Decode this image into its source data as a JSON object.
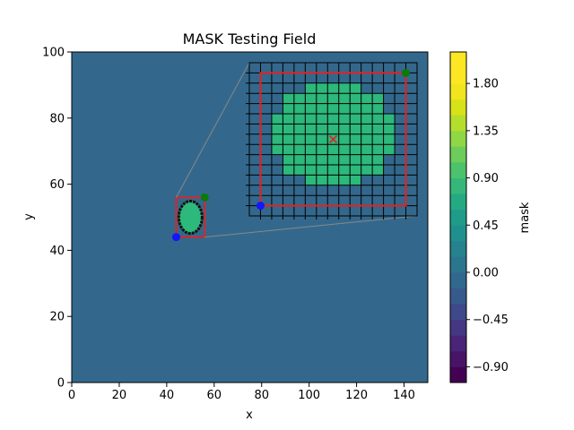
{
  "chart_data": {
    "type": "heatmap",
    "title": "MASK Testing Field",
    "xlabel": "x",
    "ylabel": "y",
    "xlim": [
      0,
      150
    ],
    "ylim": [
      0,
      100
    ],
    "xticks": [
      "0",
      "20",
      "40",
      "60",
      "80",
      "100",
      "120",
      "140"
    ],
    "yticks": [
      "0",
      "20",
      "40",
      "60",
      "80",
      "100"
    ],
    "background_mask_value": 0.0,
    "mask_value_inside": 1.0,
    "mask_region": {
      "center": [
        50,
        50
      ],
      "bbox_x": [
        44,
        56
      ],
      "bbox_y": [
        44,
        56
      ]
    },
    "markers": [
      {
        "label": "lower-left corner",
        "x": 44,
        "y": 44,
        "color": "#1515ff",
        "symbol": "circle"
      },
      {
        "label": "upper-right corner",
        "x": 56,
        "y": 56,
        "color": "#0a7a0a",
        "symbol": "circle"
      },
      {
        "label": "center",
        "x": 50,
        "y": 50,
        "color": "#d62728",
        "symbol": "x"
      }
    ],
    "colorbar": {
      "label": "mask",
      "ticks": [
        "−0.90",
        "−0.45",
        "0.00",
        "0.45",
        "0.90",
        "1.35",
        "1.80"
      ],
      "range": [
        -1.05,
        2.1
      ],
      "levels": 21,
      "colormap": "viridis"
    },
    "inset": {
      "kind": "zoom",
      "grid_cells": 15,
      "mask_rows": [
        [
          0,
          0,
          0,
          0,
          0,
          0,
          0,
          0,
          0,
          0,
          0,
          0,
          0,
          0,
          0
        ],
        [
          0,
          0,
          0,
          0,
          0,
          0,
          0,
          0,
          0,
          0,
          0,
          0,
          0,
          0,
          0
        ],
        [
          0,
          0,
          0,
          0,
          0,
          1,
          1,
          1,
          1,
          1,
          0,
          0,
          0,
          0,
          0
        ],
        [
          0,
          0,
          0,
          1,
          1,
          1,
          1,
          1,
          1,
          1,
          1,
          1,
          0,
          0,
          0
        ],
        [
          0,
          0,
          0,
          1,
          1,
          1,
          1,
          1,
          1,
          1,
          1,
          1,
          0,
          0,
          0
        ],
        [
          0,
          0,
          1,
          1,
          1,
          1,
          1,
          1,
          1,
          1,
          1,
          1,
          1,
          0,
          0
        ],
        [
          0,
          0,
          1,
          1,
          1,
          1,
          1,
          1,
          1,
          1,
          1,
          1,
          1,
          0,
          0
        ],
        [
          0,
          0,
          1,
          1,
          1,
          1,
          1,
          1,
          1,
          1,
          1,
          1,
          1,
          0,
          0
        ],
        [
          0,
          0,
          1,
          1,
          1,
          1,
          1,
          1,
          1,
          1,
          1,
          1,
          1,
          0,
          0
        ],
        [
          0,
          0,
          0,
          1,
          1,
          1,
          1,
          1,
          1,
          1,
          1,
          1,
          0,
          0,
          0
        ],
        [
          0,
          0,
          0,
          1,
          1,
          1,
          1,
          1,
          1,
          1,
          1,
          1,
          0,
          0,
          0
        ],
        [
          0,
          0,
          0,
          0,
          0,
          1,
          1,
          1,
          1,
          1,
          0,
          0,
          0,
          0,
          0
        ],
        [
          0,
          0,
          0,
          0,
          0,
          0,
          0,
          0,
          0,
          0,
          0,
          0,
          0,
          0,
          0
        ],
        [
          0,
          0,
          0,
          0,
          0,
          0,
          0,
          0,
          0,
          0,
          0,
          0,
          0,
          0,
          0
        ],
        [
          0,
          0,
          0,
          0,
          0,
          0,
          0,
          0,
          0,
          0,
          0,
          0,
          0,
          0,
          0
        ]
      ]
    },
    "colors": {
      "background_field": "#33688c",
      "inside_mask": "#2db87c",
      "bbox": "#d62728",
      "contour": "#111111"
    }
  }
}
